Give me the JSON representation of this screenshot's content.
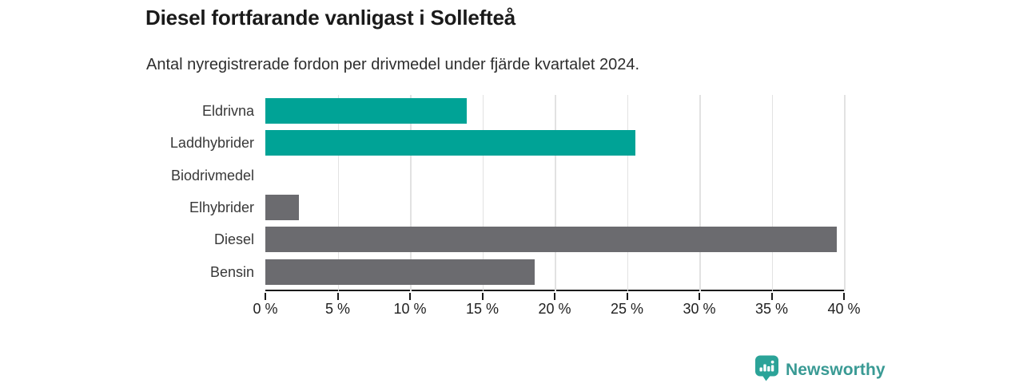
{
  "header": {
    "title": "Diesel fortfarande vanligast i Sollefteå",
    "subtitle": "Antal nyregistrerade fordon per drivmedel under fjärde kvartalet 2024."
  },
  "chart_data": {
    "type": "bar",
    "orientation": "horizontal",
    "title": "Diesel fortfarande vanligast i Sollefteå",
    "subtitle": "Antal nyregistrerade fordon per drivmedel under fjärde kvartalet 2024.",
    "categories": [
      "Eldrivna",
      "Laddhybrider",
      "Biodrivmedel",
      "Elhybrider",
      "Diesel",
      "Bensin"
    ],
    "values": [
      13.9,
      25.6,
      0,
      2.3,
      39.5,
      18.6
    ],
    "value_unit": "%",
    "bar_colors": [
      "#00a396",
      "#00a396",
      "#00a396",
      "#6b6b6f",
      "#6b6b6f",
      "#6b6b6f"
    ],
    "x_axis": {
      "min": 0,
      "max": 40,
      "ticks": [
        0,
        5,
        10,
        15,
        20,
        25,
        30,
        35,
        40
      ],
      "tick_labels": [
        "0 %",
        "5 %",
        "10 %",
        "15 %",
        "20 %",
        "25 %",
        "30 %",
        "35 %",
        "40 %"
      ]
    },
    "grid": "vertical",
    "legend": false
  },
  "branding": {
    "logo_text": "Newsworthy",
    "logo_icon": "newsworthy-barchart-pin-icon",
    "logo_text_color": "#399a94",
    "logo_icon_color": "#2ba398"
  },
  "colors": {
    "background": "#ffffff",
    "accent_teal": "#00a396",
    "neutral_gray": "#6b6b6f",
    "gridline": "#e2e2e2",
    "axis": "#1a1a1a"
  }
}
